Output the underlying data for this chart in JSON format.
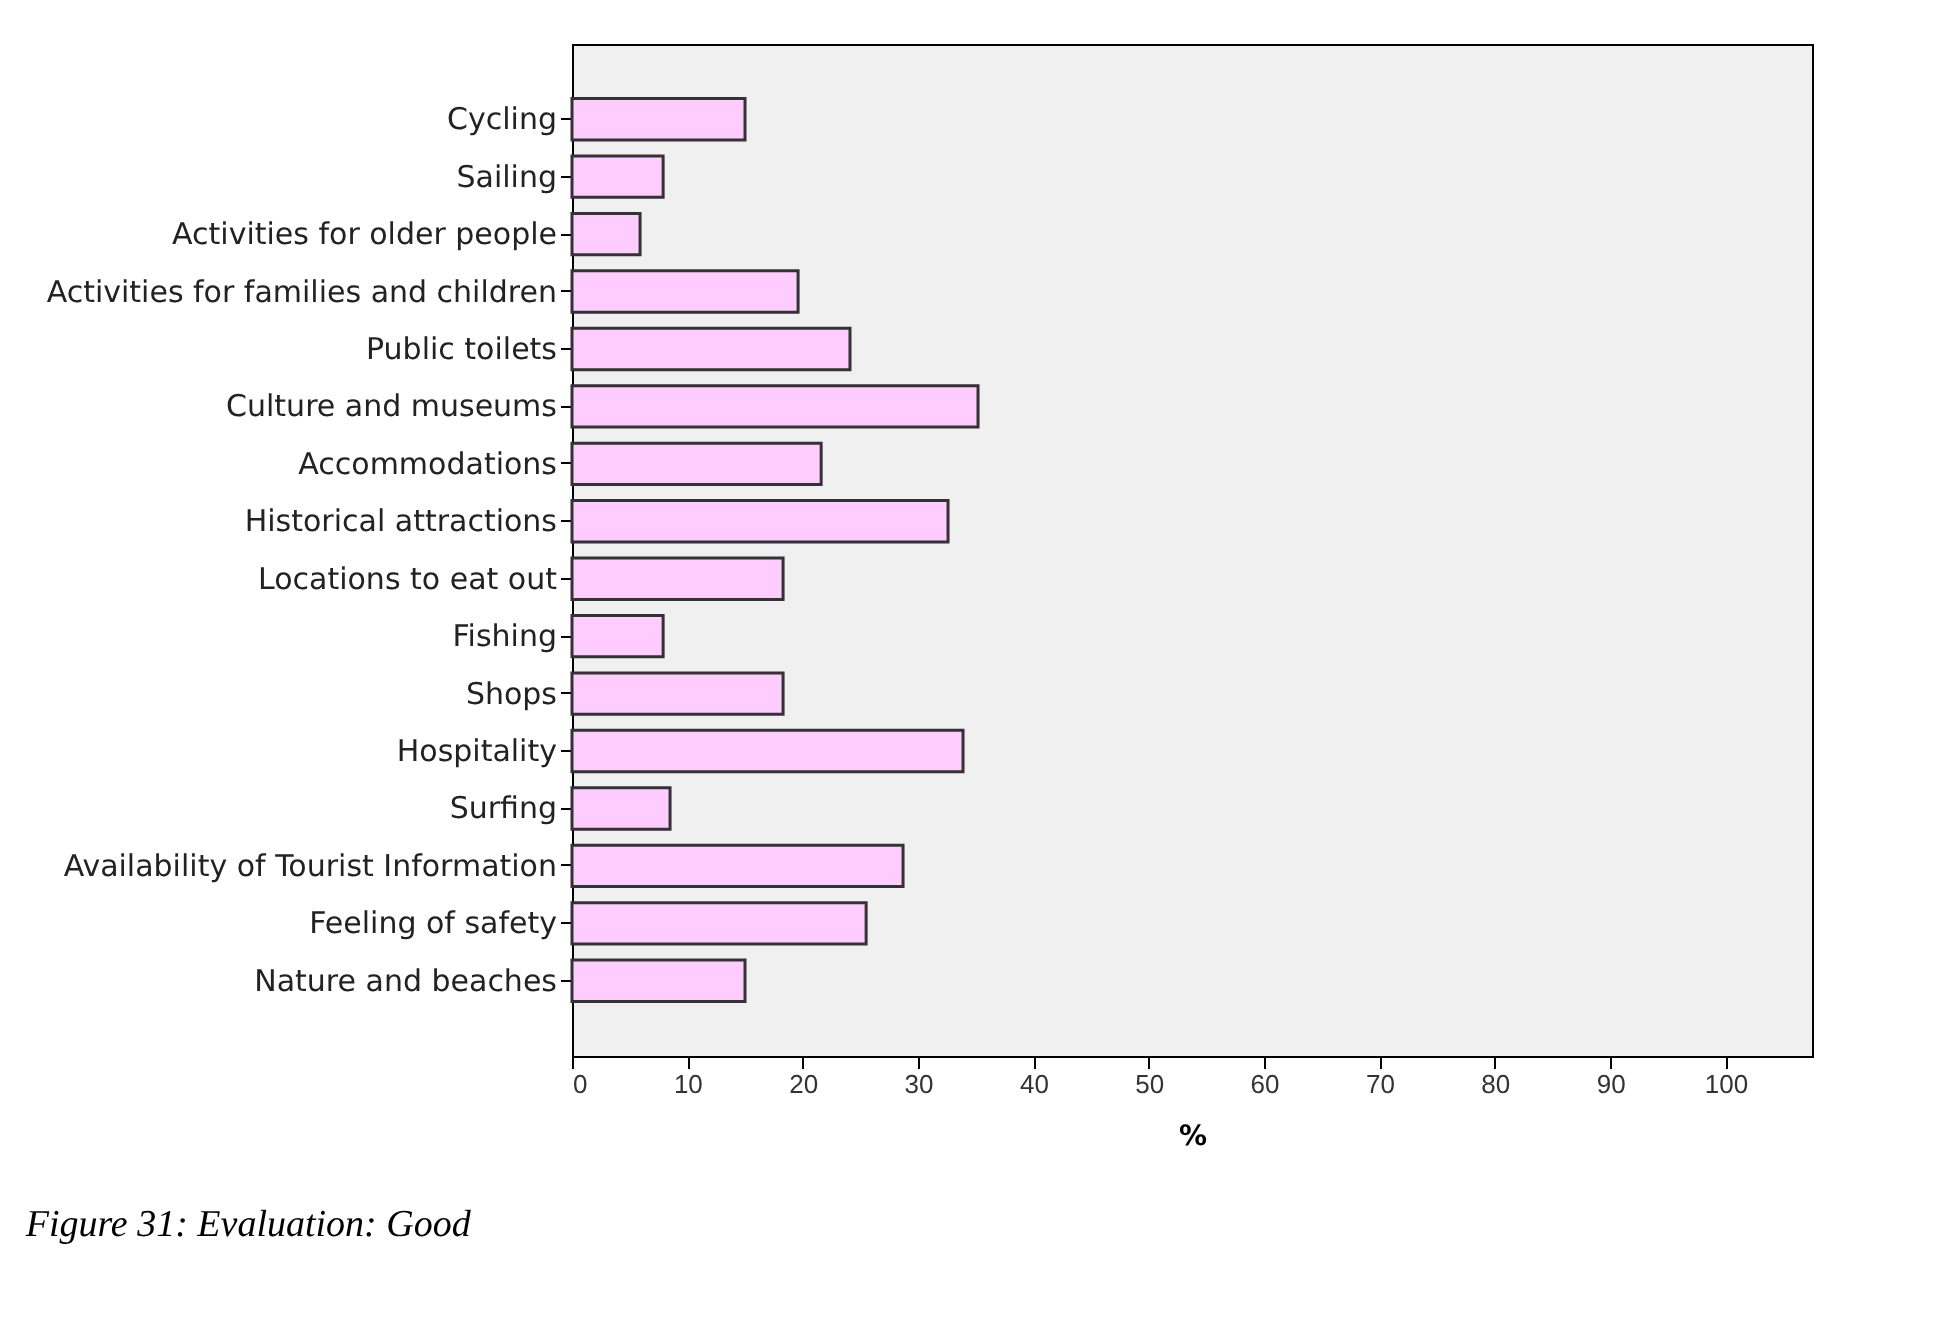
{
  "chart_data": {
    "type": "bar",
    "orientation": "horizontal",
    "xlabel": "%",
    "categories": [
      "Cycling",
      "Sailing",
      "Activities for older people",
      "Activities for families and children",
      "Public toilets",
      "Culture and museums",
      "Accommodations",
      "Historical attractions",
      "Locations to eat out",
      "Fishing",
      "Shops",
      "Hospitality",
      "Surfing",
      "Availability of Tourist Information",
      "Feeling of safety",
      "Nature and beaches"
    ],
    "values": [
      15.0,
      7.9,
      5.9,
      19.6,
      24.1,
      35.2,
      21.6,
      32.6,
      18.3,
      7.9,
      18.3,
      33.9,
      8.5,
      28.7,
      25.5,
      15.0
    ],
    "color": "#ffccff",
    "xlim": [
      0,
      107.5
    ],
    "xticks": [
      0,
      10,
      20,
      30,
      40,
      50,
      60,
      70,
      80,
      90,
      100
    ],
    "grid": false,
    "annotations": [
      "Figure 31: Evaluation: Good"
    ]
  }
}
